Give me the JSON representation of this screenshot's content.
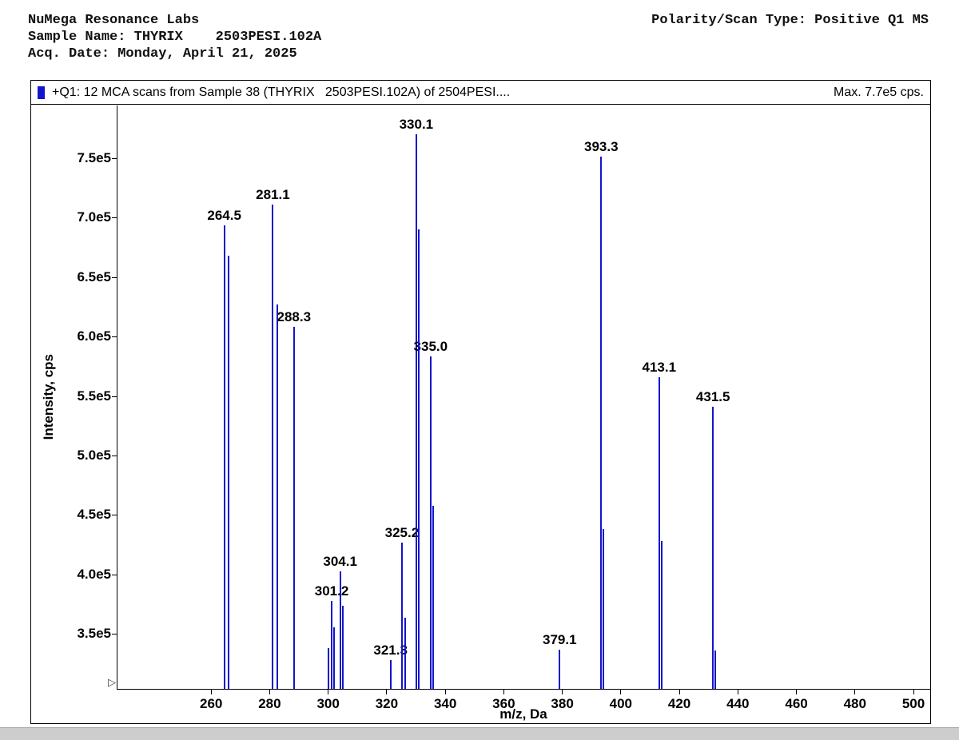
{
  "header": {
    "lab_name": "NuMega Resonance Labs",
    "polarity_scan_type": "Polarity/Scan Type: Positive Q1 MS",
    "sample_name": "Sample Name: THYRIX    2503PESI.102A",
    "acq_date": "Acq. Date: Monday, April 21, 2025"
  },
  "chart": {
    "title": "+Q1: 12 MCA scans from Sample 38 (THYRIX   2503PESI.102A) of 2504PESI....",
    "max_label": "Max. 7.7e5 cps."
  },
  "icons": {
    "axis_origin_marker": "▷"
  },
  "chart_data": {
    "type": "bar",
    "subtype": "mass-spectrum-stick-plot",
    "title": "+Q1: 12 MCA scans from Sample 38 (THYRIX   2503PESI.102A) of 2504PESI....",
    "max_annotation": "Max. 7.7e5 cps.",
    "xlabel": "m/z, Da",
    "ylabel": "Intensity, cps",
    "legend_position": "title-bar-swatch",
    "grid": false,
    "color": "#1414CC",
    "xlim": [
      228,
      506
    ],
    "ylim": [
      304000,
      794000
    ],
    "x_ticks": [
      260,
      280,
      300,
      320,
      340,
      360,
      380,
      400,
      420,
      440,
      460,
      480,
      500
    ],
    "y_ticks": [
      {
        "value": 350000,
        "label": "3.5e5"
      },
      {
        "value": 400000,
        "label": "4.0e5"
      },
      {
        "value": 450000,
        "label": "4.5e5"
      },
      {
        "value": 500000,
        "label": "5.0e5"
      },
      {
        "value": 550000,
        "label": "5.5e5"
      },
      {
        "value": 600000,
        "label": "6.0e5"
      },
      {
        "value": 650000,
        "label": "6.5e5"
      },
      {
        "value": 700000,
        "label": "7.0e5"
      },
      {
        "value": 750000,
        "label": "7.5e5"
      }
    ],
    "peaks": [
      {
        "mz": 264.5,
        "intensity": 693000,
        "label": "264.5"
      },
      {
        "mz": 281.1,
        "intensity": 711000,
        "label": "281.1"
      },
      {
        "mz": 288.3,
        "intensity": 608000,
        "label": "288.3"
      },
      {
        "mz": 301.2,
        "intensity": 378000,
        "label": "301.2"
      },
      {
        "mz": 304.1,
        "intensity": 403000,
        "label": "304.1"
      },
      {
        "mz": 321.3,
        "intensity": 328000,
        "label": "321.3"
      },
      {
        "mz": 325.2,
        "intensity": 427000,
        "label": "325.2"
      },
      {
        "mz": 330.1,
        "intensity": 770000,
        "label": "330.1"
      },
      {
        "mz": 335.0,
        "intensity": 583000,
        "label": "335.0"
      },
      {
        "mz": 379.1,
        "intensity": 337000,
        "label": "379.1"
      },
      {
        "mz": 393.3,
        "intensity": 751000,
        "label": "393.3"
      },
      {
        "mz": 413.1,
        "intensity": 566000,
        "label": "413.1"
      },
      {
        "mz": 431.5,
        "intensity": 541000,
        "label": "431.5"
      }
    ],
    "minor_peaks": [
      {
        "mz": 265.9,
        "intensity": 668000
      },
      {
        "mz": 282.6,
        "intensity": 627000
      },
      {
        "mz": 300.2,
        "intensity": 338000
      },
      {
        "mz": 302.1,
        "intensity": 356000
      },
      {
        "mz": 305.1,
        "intensity": 374000
      },
      {
        "mz": 326.3,
        "intensity": 364000
      },
      {
        "mz": 331.0,
        "intensity": 690000
      },
      {
        "mz": 336.0,
        "intensity": 458000
      },
      {
        "mz": 394.1,
        "intensity": 438000
      },
      {
        "mz": 414.0,
        "intensity": 428000
      },
      {
        "mz": 432.4,
        "intensity": 336000
      }
    ]
  }
}
